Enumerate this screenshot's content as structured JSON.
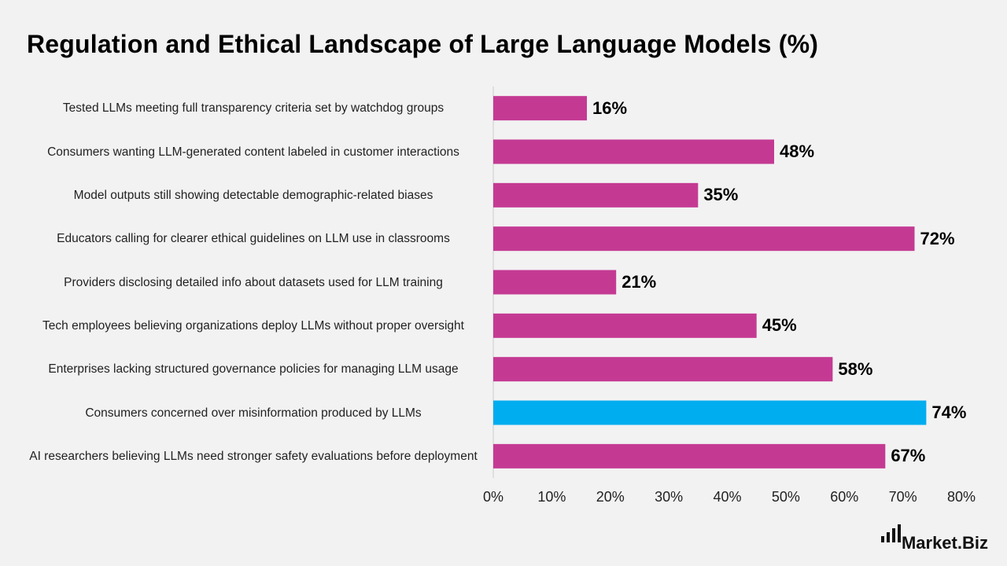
{
  "title": "Regulation and Ethical Landscape of Large Language Models (%)",
  "brand": {
    "name": "Market.Biz",
    "icon": "bar-signal-icon"
  },
  "chart_data": {
    "type": "bar",
    "orientation": "horizontal",
    "title": "Regulation and Ethical Landscape of Large Language Models (%)",
    "xlabel": "",
    "ylabel": "",
    "xlim": [
      0,
      80
    ],
    "ticks": [
      0,
      10,
      20,
      30,
      40,
      50,
      60,
      70,
      80
    ],
    "tick_labels": [
      "0%",
      "10%",
      "20%",
      "30%",
      "40%",
      "50%",
      "60%",
      "70%",
      "80%"
    ],
    "grid": false,
    "categories": [
      "Tested LLMs meeting full transparency criteria set by watchdog groups",
      "Consumers wanting LLM-generated content labeled in customer interactions",
      "Model outputs still showing detectable demographic-related biases",
      "Educators calling for clearer ethical guidelines on LLM use in classrooms",
      "Providers disclosing detailed info about datasets used for LLM training",
      "Tech employees believing organizations deploy LLMs without proper oversight",
      "Enterprises lacking structured governance policies for managing LLM usage",
      "Consumers concerned over misinformation produced by LLMs",
      "AI researchers believing LLMs need stronger safety evaluations before deployment"
    ],
    "values": [
      16,
      48,
      35,
      72,
      21,
      45,
      58,
      74,
      67
    ],
    "value_labels": [
      "16%",
      "48%",
      "35%",
      "72%",
      "21%",
      "45%",
      "58%",
      "74%",
      "67%"
    ],
    "highlight_index": 7,
    "colors": {
      "bar": "#c43a93",
      "highlight": "#00adef",
      "axis": "#cccccc"
    }
  }
}
